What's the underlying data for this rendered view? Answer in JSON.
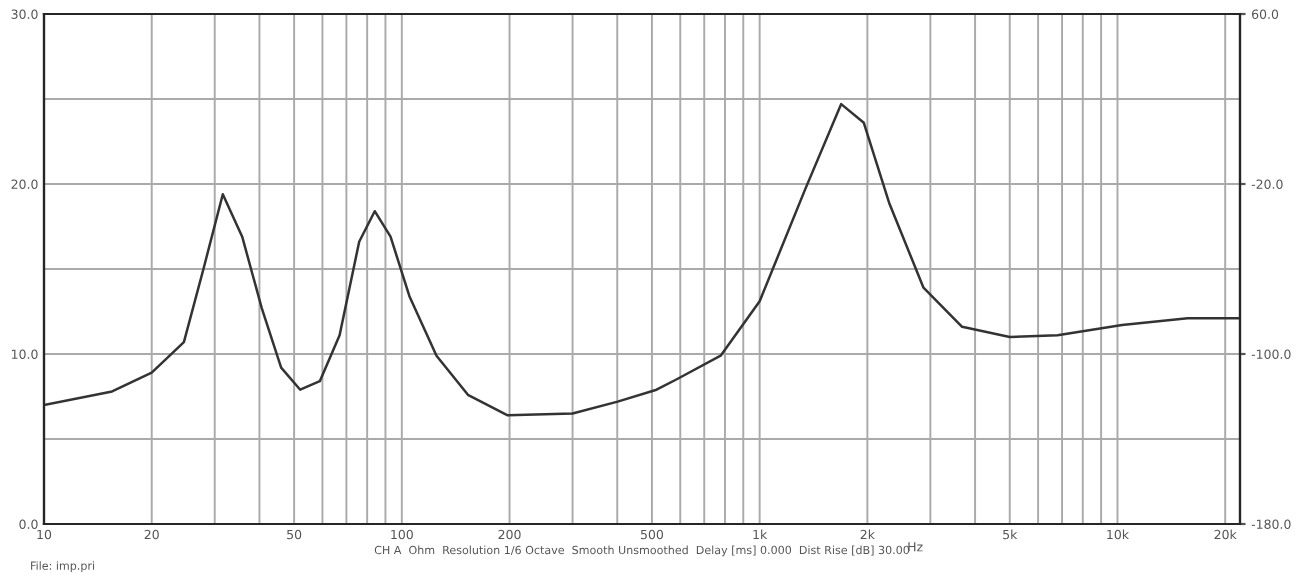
{
  "chart_data": {
    "type": "line",
    "xlabel": "Hz",
    "x": [
      10,
      15.5,
      20,
      24.6,
      27.9,
      31.6,
      35.8,
      40.6,
      46,
      52,
      59,
      67,
      76,
      84,
      93,
      105,
      125,
      153,
      197,
      300,
      401,
      515,
      585,
      778,
      1000,
      1341,
      1690,
      1955,
      2300,
      2870,
      3680,
      5000,
      6800,
      10300,
      15700,
      22000
    ],
    "series": [
      {
        "color": "#333333",
        "values": [
          7.0,
          7.8,
          8.9,
          10.7,
          15.0,
          19.4,
          16.9,
          12.7,
          9.2,
          7.9,
          8.4,
          11.1,
          16.6,
          18.4,
          16.9,
          13.4,
          9.9,
          7.6,
          6.4,
          6.5,
          7.2,
          7.9,
          8.5,
          9.9,
          13.1,
          19.7,
          24.7,
          23.6,
          18.9,
          13.9,
          11.6,
          11.0,
          11.1,
          11.7,
          12.1,
          12.1
        ]
      }
    ],
    "log": "x",
    "xlim": [
      10,
      22000
    ],
    "ylim": [
      0,
      30
    ],
    "xticks": [
      10,
      20,
      {
        "value": 30,
        "label": null
      },
      {
        "value": 40,
        "label": null
      },
      50,
      {
        "value": 60,
        "label": null
      },
      {
        "value": 70,
        "label": null
      },
      {
        "value": 80,
        "label": null
      },
      {
        "value": 90,
        "label": null
      },
      100,
      200,
      {
        "value": 300,
        "label": null
      },
      {
        "value": 400,
        "label": null
      },
      500,
      {
        "value": 600,
        "label": null
      },
      {
        "value": 700,
        "label": null
      },
      {
        "value": 800,
        "label": null
      },
      {
        "value": 900,
        "label": null
      },
      {
        "value": 1000,
        "label": "1k"
      },
      {
        "value": 2000,
        "label": "2k"
      },
      {
        "value": 3000,
        "label": null
      },
      {
        "value": 4000,
        "label": null
      },
      {
        "value": 5000,
        "label": "5k"
      },
      {
        "value": 6000,
        "label": null
      },
      {
        "value": 7000,
        "label": null
      },
      {
        "value": 8000,
        "label": null
      },
      {
        "value": 9000,
        "label": null
      },
      {
        "value": 10000,
        "label": "10k"
      },
      {
        "value": 20000,
        "label": "20k"
      }
    ],
    "yticks": [
      {
        "value": 0,
        "label": "0.0"
      },
      {
        "value": 5,
        "label": null
      },
      {
        "value": 10,
        "label": "10.0"
      },
      {
        "value": 15,
        "label": null
      },
      {
        "value": 20,
        "label": "20.0"
      },
      {
        "value": 25,
        "label": null
      },
      {
        "value": 30,
        "label": "30.0"
      }
    ],
    "y2lim": [
      -180,
      60
    ],
    "y2ticks": [
      {
        "value": -180,
        "label": "-180.0"
      },
      {
        "value": -100,
        "label": "-100.0"
      },
      {
        "value": -20,
        "label": "-20.0"
      },
      {
        "value": 60,
        "label": "60.0"
      }
    ],
    "grid": true,
    "line_style": "solid",
    "marker": "none",
    "annotations": [
      "CH A  Ohm  Resolution 1/6 Octave  Smooth Unsmoothed  Delay [ms] 0.000  Dist Rise [dB] 30.00",
      "File: imp.pri"
    ]
  }
}
